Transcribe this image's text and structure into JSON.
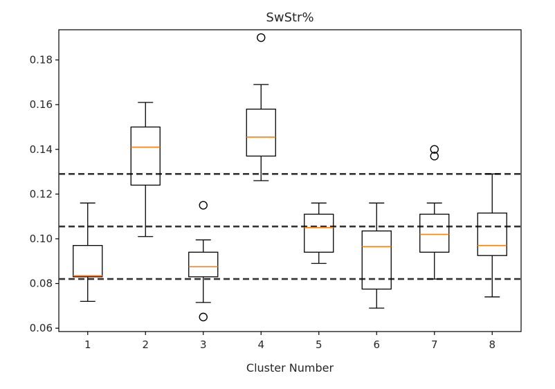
{
  "chart_data": {
    "type": "box",
    "title": "SwStr%",
    "xlabel": "Cluster Number",
    "ylabel": "",
    "ylim": [
      0.0585,
      0.1935
    ],
    "xlim": [
      0.5,
      8.5
    ],
    "grid": false,
    "categories": [
      "1",
      "2",
      "3",
      "4",
      "5",
      "6",
      "7",
      "8"
    ],
    "y_ticks": [
      0.06,
      0.08,
      0.1,
      0.12,
      0.14,
      0.16,
      0.18
    ],
    "y_tick_labels": [
      "0.06",
      "0.08",
      "0.10",
      "0.12",
      "0.14",
      "0.16",
      "0.18"
    ],
    "boxes": [
      {
        "cluster": "1",
        "whisker_low": 0.072,
        "q1": 0.083,
        "median": 0.0835,
        "q3": 0.097,
        "whisker_high": 0.116,
        "outliers": []
      },
      {
        "cluster": "2",
        "whisker_low": 0.101,
        "q1": 0.124,
        "median": 0.141,
        "q3": 0.15,
        "whisker_high": 0.161,
        "outliers": []
      },
      {
        "cluster": "3",
        "whisker_low": 0.0715,
        "q1": 0.083,
        "median": 0.0875,
        "q3": 0.094,
        "whisker_high": 0.0995,
        "outliers": [
          0.115,
          0.065
        ]
      },
      {
        "cluster": "4",
        "whisker_low": 0.126,
        "q1": 0.137,
        "median": 0.1455,
        "q3": 0.158,
        "whisker_high": 0.169,
        "outliers": [
          0.19
        ]
      },
      {
        "cluster": "5",
        "whisker_low": 0.089,
        "q1": 0.094,
        "median": 0.105,
        "q3": 0.111,
        "whisker_high": 0.116,
        "outliers": []
      },
      {
        "cluster": "6",
        "whisker_low": 0.069,
        "q1": 0.0775,
        "median": 0.0965,
        "q3": 0.1035,
        "whisker_high": 0.116,
        "outliers": []
      },
      {
        "cluster": "7",
        "whisker_low": 0.082,
        "q1": 0.094,
        "median": 0.102,
        "q3": 0.111,
        "whisker_high": 0.116,
        "outliers": [
          0.14,
          0.137
        ]
      },
      {
        "cluster": "8",
        "whisker_low": 0.074,
        "q1": 0.0925,
        "median": 0.097,
        "q3": 0.1115,
        "whisker_high": 0.129,
        "outliers": []
      }
    ],
    "reference_lines": [
      0.129,
      0.1055,
      0.082
    ],
    "colors": {
      "box": "#000000",
      "median": "#ff7f0e",
      "reference_line": "#333333"
    }
  }
}
